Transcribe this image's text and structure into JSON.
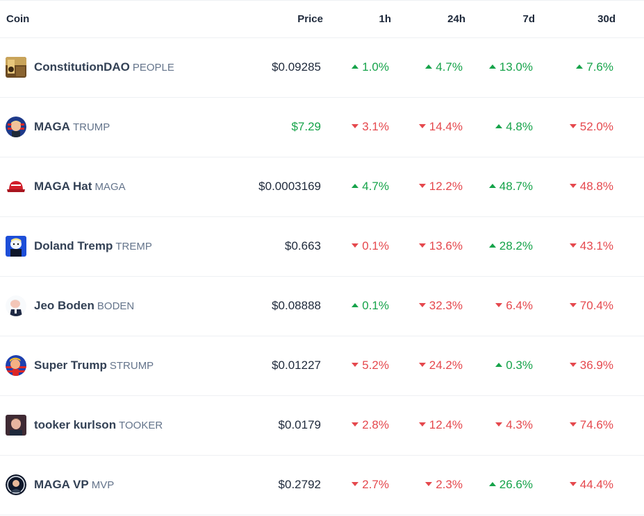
{
  "header": {
    "coin": "Coin",
    "price": "Price",
    "h1": "1h",
    "h24": "24h",
    "d7": "7d",
    "d30": "30d"
  },
  "colors": {
    "up": "#16a34a",
    "down": "#e5484d",
    "text": "#334155",
    "muted": "#64748b"
  },
  "rows": [
    {
      "name": "ConstitutionDAO",
      "symbol": "PEOPLE",
      "icon": "constitutiondao-icon",
      "price": "$0.09285",
      "price_up": false,
      "h1": "1.0%",
      "h1_dir": "up",
      "h24": "4.7%",
      "h24_dir": "up",
      "d7": "13.0%",
      "d7_dir": "up",
      "d30": "7.6%",
      "d30_dir": "up"
    },
    {
      "name": "MAGA",
      "symbol": "TRUMP",
      "icon": "maga-icon",
      "price": "$7.29",
      "price_up": true,
      "h1": "3.1%",
      "h1_dir": "down",
      "h24": "14.4%",
      "h24_dir": "down",
      "d7": "4.8%",
      "d7_dir": "up",
      "d30": "52.0%",
      "d30_dir": "down"
    },
    {
      "name": "MAGA Hat",
      "symbol": "MAGA",
      "icon": "maga-hat-icon",
      "price": "$0.0003169",
      "price_up": false,
      "h1": "4.7%",
      "h1_dir": "up",
      "h24": "12.2%",
      "h24_dir": "down",
      "d7": "48.7%",
      "d7_dir": "up",
      "d30": "48.8%",
      "d30_dir": "down"
    },
    {
      "name": "Doland Tremp",
      "symbol": "TREMP",
      "icon": "doland-tremp-icon",
      "price": "$0.663",
      "price_up": false,
      "h1": "0.1%",
      "h1_dir": "down",
      "h24": "13.6%",
      "h24_dir": "down",
      "d7": "28.2%",
      "d7_dir": "up",
      "d30": "43.1%",
      "d30_dir": "down"
    },
    {
      "name": "Jeo Boden",
      "symbol": "BODEN",
      "icon": "jeo-boden-icon",
      "price": "$0.08888",
      "price_up": false,
      "h1": "0.1%",
      "h1_dir": "up",
      "h24": "32.3%",
      "h24_dir": "down",
      "d7": "6.4%",
      "d7_dir": "down",
      "d30": "70.4%",
      "d30_dir": "down"
    },
    {
      "name": "Super Trump",
      "symbol": "STRUMP",
      "icon": "super-trump-icon",
      "price": "$0.01227",
      "price_up": false,
      "h1": "5.2%",
      "h1_dir": "down",
      "h24": "24.2%",
      "h24_dir": "down",
      "d7": "0.3%",
      "d7_dir": "up",
      "d30": "36.9%",
      "d30_dir": "down"
    },
    {
      "name": "tooker kurlson",
      "symbol": "TOOKER",
      "icon": "tooker-kurlson-icon",
      "price": "$0.0179",
      "price_up": false,
      "h1": "2.8%",
      "h1_dir": "down",
      "h24": "12.4%",
      "h24_dir": "down",
      "d7": "4.3%",
      "d7_dir": "down",
      "d30": "74.6%",
      "d30_dir": "down"
    },
    {
      "name": "MAGA VP",
      "symbol": "MVP",
      "icon": "maga-vp-icon",
      "price": "$0.2792",
      "price_up": false,
      "h1": "2.7%",
      "h1_dir": "down",
      "h24": "2.3%",
      "h24_dir": "down",
      "d7": "26.6%",
      "d7_dir": "up",
      "d30": "44.4%",
      "d30_dir": "down"
    }
  ]
}
